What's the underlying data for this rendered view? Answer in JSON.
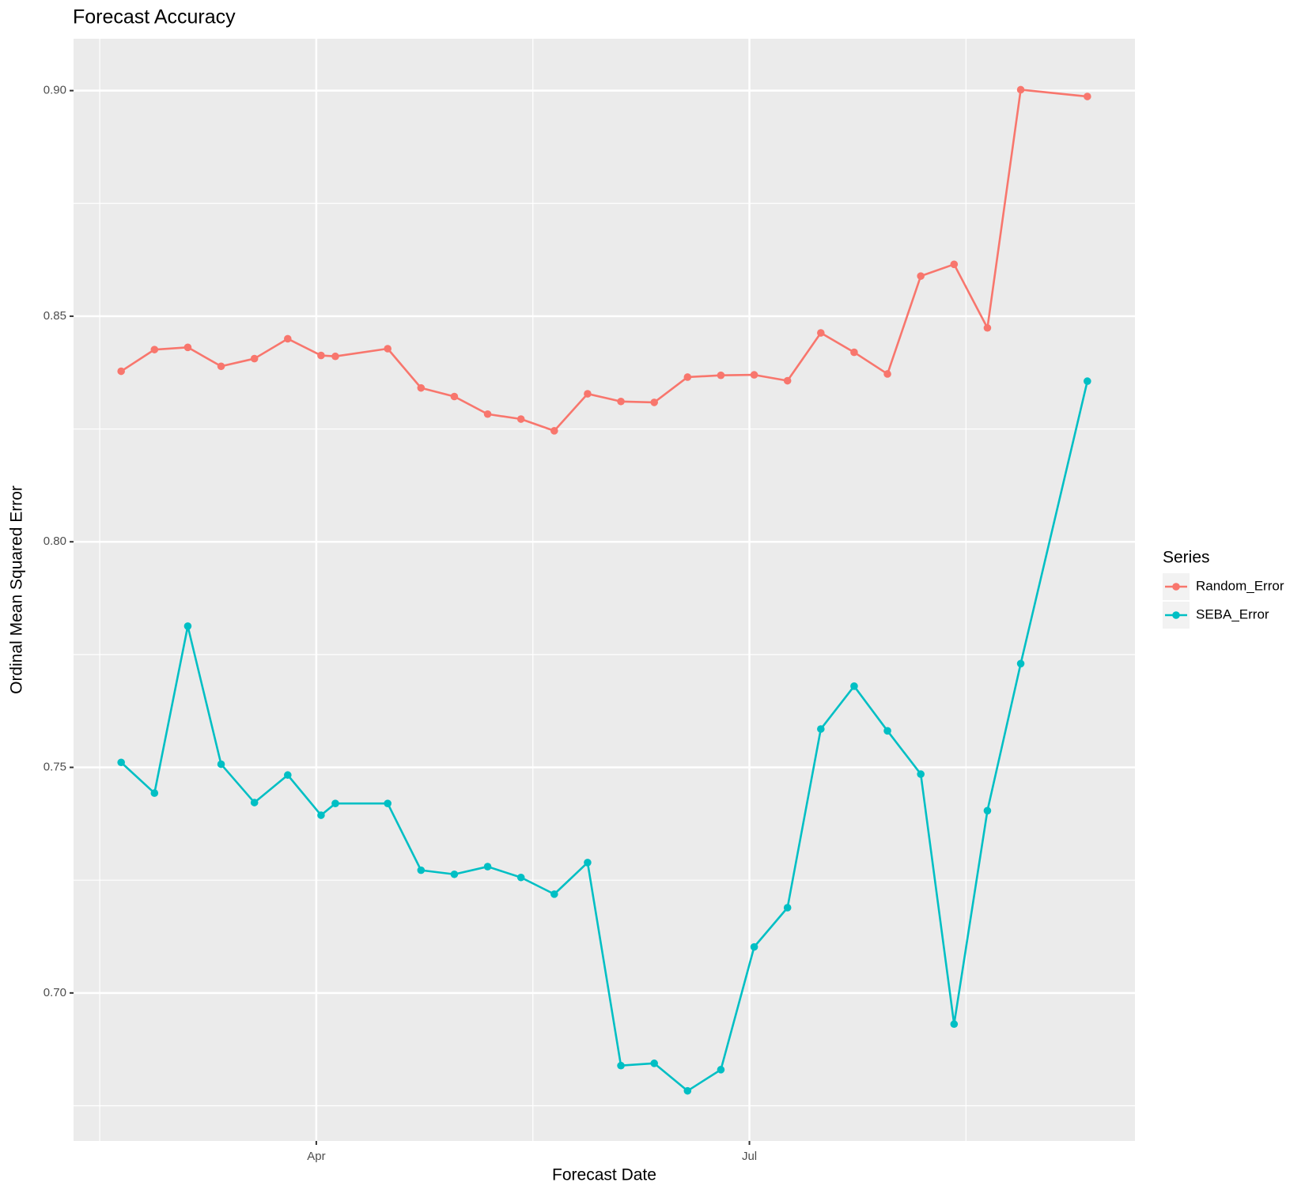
{
  "chart_data": {
    "type": "line",
    "title": "Forecast Accuracy",
    "x_label": "Forecast Date",
    "y_label": "Ordinal Mean Squared Error",
    "x": [
      50,
      57,
      64,
      71,
      78,
      85,
      92,
      95,
      106,
      113,
      120,
      127,
      134,
      141,
      148,
      155,
      162,
      169,
      176,
      183,
      190,
      197,
      204,
      211,
      218,
      225,
      232,
      239,
      253
    ],
    "xlim": [
      40,
      263
    ],
    "xticks": [
      {
        "value": 91,
        "label": "Apr"
      },
      {
        "value": 182,
        "label": "Jul"
      }
    ],
    "ylim": [
      0.6672,
      0.9115
    ],
    "yticks": [
      {
        "value": 0.7,
        "label": "0.70"
      },
      0.75,
      {
        "value": 0.8,
        "label": "0.80"
      },
      0.85,
      {
        "value": 0.9,
        "label": "0.90"
      }
    ],
    "grid": true,
    "legend": "right",
    "legend_title": "Series",
    "series": [
      {
        "name": "Random_Error",
        "color": "#F8766D",
        "values": [
          0.8378,
          0.8426,
          0.8431,
          0.8389,
          0.8406,
          0.845,
          0.8413,
          0.8411,
          0.8428,
          0.8341,
          0.8322,
          0.8283,
          0.8272,
          0.8246,
          0.8328,
          0.8311,
          0.8309,
          0.8365,
          0.8369,
          0.837,
          0.8357,
          0.8463,
          0.842,
          0.8372,
          0.8589,
          0.8615,
          0.8474,
          0.9002,
          0.8987
        ]
      },
      {
        "name": "SEBA_Error",
        "color": "#00BFC4",
        "values": [
          0.7511,
          0.7443,
          0.7813,
          0.7507,
          0.7422,
          0.7483,
          0.7394,
          0.742,
          0.742,
          0.7272,
          0.7263,
          0.728,
          0.7256,
          0.7219,
          0.7289,
          0.6839,
          0.6844,
          0.6783,
          0.683,
          0.7102,
          0.7189,
          0.7585,
          0.768,
          0.7581,
          0.7485,
          0.6931,
          0.7404,
          0.773,
          0.8356
        ]
      }
    ]
  }
}
